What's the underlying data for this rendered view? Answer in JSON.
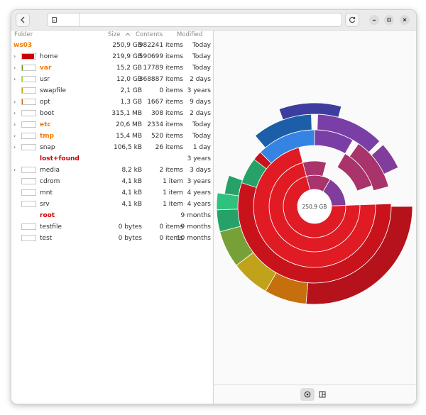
{
  "path": {
    "segment_icon": "drive-icon"
  },
  "columns": {
    "folder": "Folder",
    "size": "Size",
    "contents": "Contents",
    "modified": "Modified"
  },
  "root": {
    "name": "ws03",
    "size": "250,9 GB",
    "contents": "982241 items",
    "modified": "Today"
  },
  "rows": [
    {
      "name": "home",
      "size": "219,9 GB",
      "contents": "590699 items",
      "modified": "Today",
      "expander": "›",
      "has_bar": true,
      "share": 0.877,
      "bar_color": "#cc0000",
      "name_color": "#2e2e2e"
    },
    {
      "name": "var",
      "size": "15,2 GB",
      "contents": "17789 items",
      "modified": "Today",
      "expander": "›",
      "has_bar": true,
      "share": 0.061,
      "bar_color": "#4e9a06",
      "name_color": "#f57900"
    },
    {
      "name": "usr",
      "size": "12,0 GB",
      "contents": "368887 items",
      "modified": "2 days",
      "expander": "›",
      "has_bar": true,
      "share": 0.048,
      "bar_color": "#8ae234",
      "name_color": "#2e2e2e"
    },
    {
      "name": "swapfile",
      "size": "2,1 GB",
      "contents": "0 items",
      "modified": "3 years",
      "expander": "",
      "has_bar": true,
      "share": 0.008,
      "bar_color": "#c4a000",
      "name_color": "#2e2e2e"
    },
    {
      "name": "opt",
      "size": "1,3 GB",
      "contents": "1667 items",
      "modified": "9 days",
      "expander": "›",
      "has_bar": true,
      "share": 0.005,
      "bar_color": "#ce5c00",
      "name_color": "#2e2e2e"
    },
    {
      "name": "boot",
      "size": "315,1 MB",
      "contents": "308 items",
      "modified": "2 days",
      "expander": "›",
      "has_bar": true,
      "share": 0.001,
      "bar_color": "#ce5c00",
      "name_color": "#2e2e2e"
    },
    {
      "name": "etc",
      "size": "20,6 MB",
      "contents": "2334 items",
      "modified": "Today",
      "expander": "›",
      "has_bar": true,
      "share": 0,
      "bar_color": "#ce5c00",
      "name_color": "#f57900"
    },
    {
      "name": "tmp",
      "size": "15,4 MB",
      "contents": "520 items",
      "modified": "Today",
      "expander": "›",
      "has_bar": true,
      "share": 0,
      "bar_color": "#ce5c00",
      "name_color": "#f57900"
    },
    {
      "name": "snap",
      "size": "106,5 kB",
      "contents": "26 items",
      "modified": "1 day",
      "expander": "›",
      "has_bar": true,
      "share": 0,
      "bar_color": "#ce5c00",
      "name_color": "#2e2e2e"
    },
    {
      "name": "lost+found",
      "size": "",
      "contents": "",
      "modified": "3 years",
      "expander": "",
      "has_bar": false,
      "share": 0,
      "bar_color": "#cc0000",
      "name_color": "#cc0000"
    },
    {
      "name": "media",
      "size": "8,2 kB",
      "contents": "2 items",
      "modified": "3 days",
      "expander": "›",
      "has_bar": true,
      "share": 0,
      "bar_color": "#ce5c00",
      "name_color": "#2e2e2e"
    },
    {
      "name": "cdrom",
      "size": "4,1 kB",
      "contents": "1 item",
      "modified": "3 years",
      "expander": "",
      "has_bar": true,
      "share": 0,
      "bar_color": "#ce5c00",
      "name_color": "#2e2e2e"
    },
    {
      "name": "mnt",
      "size": "4,1 kB",
      "contents": "1 item",
      "modified": "4 years",
      "expander": "",
      "has_bar": true,
      "share": 0,
      "bar_color": "#ce5c00",
      "name_color": "#2e2e2e"
    },
    {
      "name": "srv",
      "size": "4,1 kB",
      "contents": "1 item",
      "modified": "4 years",
      "expander": "",
      "has_bar": true,
      "share": 0,
      "bar_color": "#ce5c00",
      "name_color": "#2e2e2e"
    },
    {
      "name": "root",
      "size": "",
      "contents": "",
      "modified": "9 months",
      "expander": "",
      "has_bar": false,
      "share": 0,
      "bar_color": "#cc0000",
      "name_color": "#cc0000"
    },
    {
      "name": "testfile",
      "size": "0 bytes",
      "contents": "0 items",
      "modified": "9 months",
      "expander": "",
      "has_bar": true,
      "share": 0,
      "bar_color": "#ce5c00",
      "name_color": "#2e2e2e"
    },
    {
      "name": "test",
      "size": "0 bytes",
      "contents": "0 items",
      "modified": "10 months",
      "expander": "",
      "has_bar": true,
      "share": 0,
      "bar_color": "#ce5c00",
      "name_color": "#2e2e2e"
    }
  ],
  "chart": {
    "center_label": "250,9 GB",
    "colors": {
      "home": "#e01b24",
      "home_dark": "#b5121b",
      "home_mid": "#c8131d",
      "teal": "#26a269",
      "green": "#2ec27e",
      "olive": "#77a136",
      "yellow": "#c0a21b",
      "orange": "#c5700c",
      "blue": "#3584e4",
      "navy": "#1c5fa8",
      "indigo": "#3d3da0",
      "purple": "#7a3fa6",
      "magenta": "#a9336b",
      "violet": "#813d9c"
    }
  },
  "view_buttons": {
    "chart_icon": "ring-chart-icon",
    "treemap_icon": "treemap-icon"
  },
  "accent_orange": "#f57900"
}
